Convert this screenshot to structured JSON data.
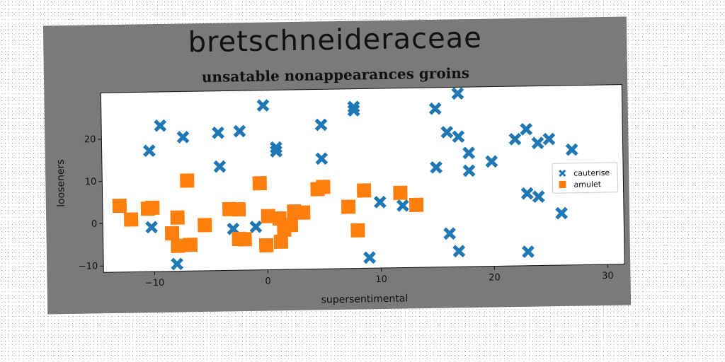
{
  "chart_data": {
    "type": "scatter",
    "title": "bretschneideraceae",
    "subtitle": "unsatable nonappearances groins",
    "xlabel": "supersentimental",
    "ylabel": "looseners",
    "xlim": [
      -14.5,
      31.5
    ],
    "ylim": [
      -11.5,
      31
    ],
    "xticks": [
      -10,
      0,
      10,
      20,
      30
    ],
    "yticks": [
      -10,
      0,
      10,
      20
    ],
    "grid": false,
    "legend_position": "center-right",
    "series": [
      {
        "name": "cauterise",
        "color": "#1f77b4",
        "marker": "x",
        "points": [
          [
            -10.3,
            17.1
          ],
          [
            -9.3,
            23.0
          ],
          [
            -7.3,
            20.2
          ],
          [
            -4.2,
            21.1
          ],
          [
            -2.3,
            21.4
          ],
          [
            -0.2,
            27.4
          ],
          [
            0.9,
            17.4
          ],
          [
            0.9,
            16.5
          ],
          [
            -4.1,
            13.1
          ],
          [
            -10.2,
            -1.0
          ],
          [
            -3.0,
            -1.7
          ],
          [
            -1.0,
            -1.3
          ],
          [
            -8.0,
            -9.8
          ],
          [
            4.9,
            22.6
          ],
          [
            4.9,
            14.6
          ],
          [
            7.8,
            26.7
          ],
          [
            7.8,
            25.9
          ],
          [
            10.0,
            4.1
          ],
          [
            12.0,
            3.2
          ],
          [
            9.0,
            -9.0
          ],
          [
            15.0,
            26.0
          ],
          [
            16.0,
            20.4
          ],
          [
            17.0,
            19.3
          ],
          [
            17.0,
            29.5
          ],
          [
            15.0,
            12.1
          ],
          [
            17.9,
            15.4
          ],
          [
            17.9,
            11.2
          ],
          [
            19.9,
            13.3
          ],
          [
            22.0,
            18.5
          ],
          [
            23.0,
            20.8
          ],
          [
            24.0,
            17.5
          ],
          [
            25.0,
            18.4
          ],
          [
            27.0,
            15.8
          ],
          [
            16.1,
            -3.6
          ],
          [
            16.9,
            -7.8
          ],
          [
            23.0,
            5.6
          ],
          [
            24.0,
            4.8
          ],
          [
            23.0,
            -8.2
          ],
          [
            26.0,
            0.8
          ]
        ]
      },
      {
        "name": "amulet",
        "color": "#ff7f0e",
        "marker": "s",
        "points": [
          [
            -13.0,
            4.2
          ],
          [
            -12.0,
            0.9
          ],
          [
            -10.1,
            3.6
          ],
          [
            -10.5,
            3.4
          ],
          [
            -7.9,
            1.2
          ],
          [
            -7.0,
            9.9
          ],
          [
            -8.4,
            -2.5
          ],
          [
            -7.9,
            -5.5
          ],
          [
            -6.8,
            -5.3
          ],
          [
            -5.5,
            -0.7
          ],
          [
            -3.3,
            3.0
          ],
          [
            -2.5,
            2.9
          ],
          [
            -2.5,
            -4.1
          ],
          [
            -2.0,
            -4.2
          ],
          [
            -0.6,
            9.0
          ],
          [
            0.1,
            1.2
          ],
          [
            1.1,
            0.6
          ],
          [
            -0.1,
            -5.7
          ],
          [
            1.2,
            -4.9
          ],
          [
            1.5,
            -2.1
          ],
          [
            2.1,
            -1.0
          ],
          [
            2.4,
            2.2
          ],
          [
            3.2,
            1.9
          ],
          [
            4.5,
            7.4
          ],
          [
            5.0,
            7.9
          ],
          [
            7.2,
            3.1
          ],
          [
            8.0,
            -2.5
          ],
          [
            8.6,
            6.9
          ],
          [
            11.8,
            6.2
          ],
          [
            13.2,
            3.3
          ]
        ]
      }
    ]
  }
}
